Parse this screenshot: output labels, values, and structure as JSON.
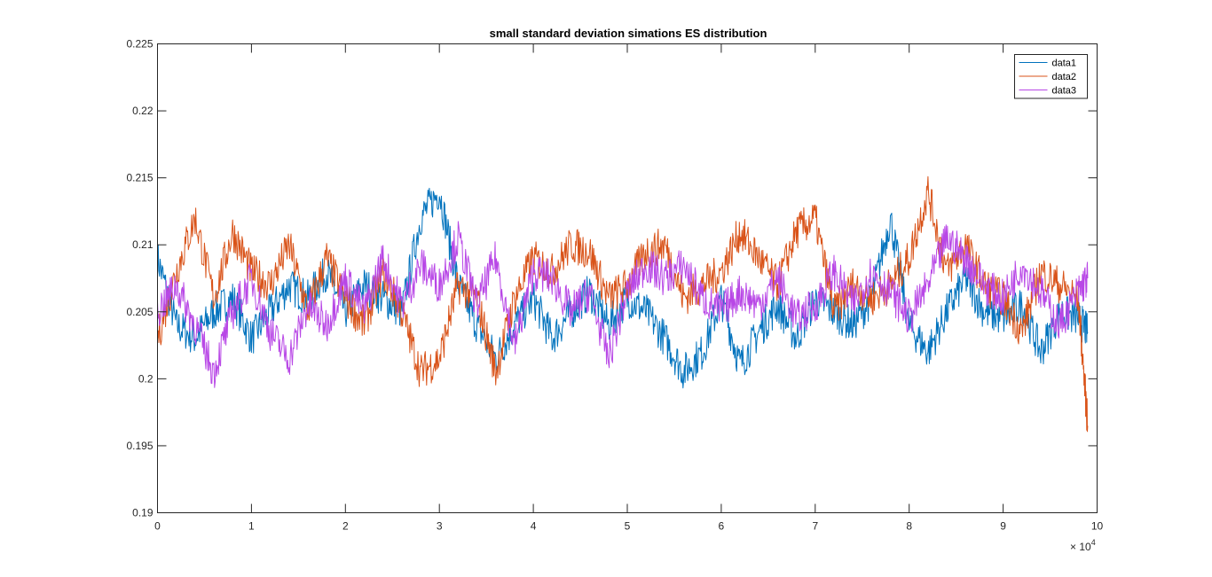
{
  "chart_data": {
    "type": "line",
    "title": "small standard deviation simations ES distribution",
    "xlabel": "",
    "ylabel": "",
    "xlim": [
      0,
      100000
    ],
    "ylim": [
      0.19,
      0.225
    ],
    "x_ticks": [
      0,
      10000,
      20000,
      30000,
      40000,
      50000,
      60000,
      70000,
      80000,
      90000,
      100000
    ],
    "x_tick_labels": [
      "0",
      "1",
      "2",
      "3",
      "4",
      "5",
      "6",
      "7",
      "8",
      "9",
      "10"
    ],
    "x_exponent_label": "× 10",
    "x_exponent_power": "4",
    "y_ticks": [
      0.19,
      0.195,
      0.2,
      0.205,
      0.21,
      0.215,
      0.22,
      0.225
    ],
    "y_tick_labels": [
      "0.19",
      "0.195",
      "0.2",
      "0.205",
      "0.21",
      "0.215",
      "0.22",
      "0.225"
    ],
    "grid": false,
    "legend_position": "top-right",
    "series": [
      {
        "name": "data1",
        "color": "#0072BD",
        "x": [
          0,
          2000,
          4000,
          6000,
          8000,
          10000,
          12000,
          14000,
          16000,
          18000,
          20000,
          22000,
          24000,
          26000,
          28000,
          30000,
          32000,
          34000,
          36000,
          38000,
          40000,
          42000,
          44000,
          46000,
          48000,
          50000,
          52000,
          54000,
          56000,
          58000,
          60000,
          62000,
          64000,
          66000,
          68000,
          70000,
          72000,
          74000,
          76000,
          78000,
          80000,
          82000,
          84000,
          86000,
          88000,
          90000,
          92000,
          94000,
          96000,
          98000,
          99000
        ],
        "y": [
          0.209,
          0.204,
          0.203,
          0.205,
          0.206,
          0.203,
          0.205,
          0.207,
          0.206,
          0.208,
          0.205,
          0.207,
          0.206,
          0.205,
          0.212,
          0.214,
          0.207,
          0.204,
          0.2015,
          0.204,
          0.206,
          0.203,
          0.205,
          0.2065,
          0.204,
          0.206,
          0.205,
          0.203,
          0.2005,
          0.202,
          0.206,
          0.201,
          0.2035,
          0.2055,
          0.203,
          0.206,
          0.205,
          0.204,
          0.206,
          0.212,
          0.204,
          0.202,
          0.205,
          0.2075,
          0.205,
          0.2045,
          0.2055,
          0.202,
          0.205,
          0.2045,
          0.2035
        ]
      },
      {
        "name": "data2",
        "color": "#D95319",
        "x": [
          0,
          2000,
          4000,
          6000,
          8000,
          10000,
          12000,
          14000,
          16000,
          18000,
          20000,
          22000,
          24000,
          26000,
          28000,
          30000,
          32000,
          34000,
          36000,
          38000,
          40000,
          42000,
          44000,
          46000,
          48000,
          50000,
          52000,
          54000,
          56000,
          58000,
          60000,
          62000,
          64000,
          66000,
          68000,
          70000,
          72000,
          74000,
          76000,
          78000,
          80000,
          82000,
          84000,
          86000,
          88000,
          90000,
          92000,
          94000,
          96000,
          98000,
          99000
        ],
        "y": [
          0.203,
          0.208,
          0.212,
          0.206,
          0.211,
          0.208,
          0.207,
          0.21,
          0.205,
          0.209,
          0.206,
          0.204,
          0.208,
          0.205,
          0.2005,
          0.2015,
          0.207,
          0.206,
          0.2005,
          0.206,
          0.209,
          0.208,
          0.21,
          0.2095,
          0.206,
          0.207,
          0.2095,
          0.21,
          0.206,
          0.207,
          0.208,
          0.211,
          0.209,
          0.207,
          0.211,
          0.212,
          0.205,
          0.207,
          0.206,
          0.207,
          0.209,
          0.214,
          0.208,
          0.21,
          0.207,
          0.206,
          0.2035,
          0.208,
          0.207,
          0.206,
          0.1965
        ]
      },
      {
        "name": "data3",
        "color": "#B847E6",
        "x": [
          0,
          2000,
          4000,
          6000,
          8000,
          10000,
          12000,
          14000,
          16000,
          18000,
          20000,
          22000,
          24000,
          26000,
          28000,
          30000,
          32000,
          34000,
          36000,
          38000,
          40000,
          42000,
          44000,
          46000,
          48000,
          50000,
          52000,
          54000,
          56000,
          58000,
          60000,
          62000,
          64000,
          66000,
          68000,
          70000,
          72000,
          74000,
          76000,
          78000,
          80000,
          82000,
          84000,
          86000,
          88000,
          90000,
          92000,
          94000,
          96000,
          98000,
          99000
        ],
        "y": [
          0.205,
          0.207,
          0.204,
          0.2005,
          0.205,
          0.2075,
          0.2035,
          0.2015,
          0.2055,
          0.204,
          0.2075,
          0.205,
          0.209,
          0.2055,
          0.2085,
          0.207,
          0.2105,
          0.2055,
          0.209,
          0.2025,
          0.208,
          0.2075,
          0.205,
          0.2065,
          0.2015,
          0.2065,
          0.2085,
          0.2075,
          0.2085,
          0.206,
          0.205,
          0.2065,
          0.2055,
          0.2075,
          0.2045,
          0.2055,
          0.208,
          0.2055,
          0.208,
          0.2065,
          0.2045,
          0.207,
          0.2105,
          0.209,
          0.207,
          0.206,
          0.2085,
          0.2065,
          0.204,
          0.2065,
          0.2075
        ]
      }
    ]
  }
}
